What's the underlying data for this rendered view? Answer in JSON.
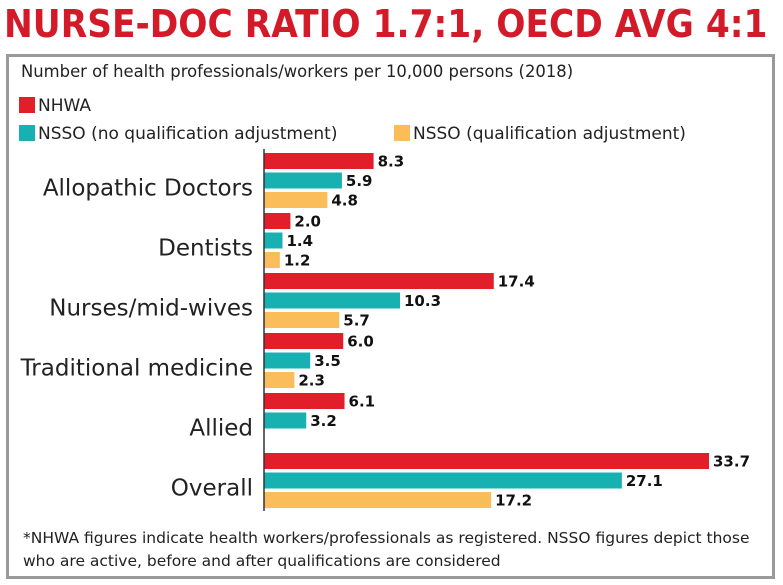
{
  "header": {
    "title": "NURSE-DOC RATIO 1.7:1, OECD AVG 4:1"
  },
  "colors": {
    "title": "#d31a28",
    "nhwa": "#e21e2b",
    "nsso_no_adj": "#16b1b0",
    "nsso_adj": "#fbbd59",
    "panel_border": "#9a9a9a"
  },
  "chart_data": {
    "type": "bar",
    "orientation": "horizontal",
    "title": "Number of health professionals/workers per 10,000 persons (2018)",
    "categories": [
      "Allopathic Doctors",
      "Dentists",
      "Nurses/mid-wives",
      "Traditional medicine",
      "Allied",
      "Overall"
    ],
    "series": [
      {
        "name": "NHWA",
        "color": "#e21e2b",
        "values": [
          8.3,
          2.0,
          17.4,
          6.0,
          6.1,
          33.7
        ]
      },
      {
        "name": "NSSO (no qualification adjustment)",
        "color": "#16b1b0",
        "values": [
          5.9,
          1.4,
          10.3,
          3.5,
          3.2,
          27.1
        ]
      },
      {
        "name": "NSSO (qualification adjustment)",
        "color": "#fbbd59",
        "values": [
          4.8,
          1.2,
          5.7,
          2.3,
          null,
          17.2
        ]
      }
    ],
    "value_labels": [
      [
        "8.3",
        "2.0",
        "17.4",
        "6.0",
        "6.1",
        "33.7"
      ],
      [
        "5.9",
        "1.4",
        "10.3",
        "3.5",
        "3.2",
        "27.1"
      ],
      [
        "4.8",
        "1.2",
        "5.7",
        "2.3",
        "",
        "17.2"
      ]
    ],
    "xlim": [
      0,
      33.7
    ],
    "grid": false,
    "legend_position": "top-left"
  },
  "footnote": "*NHWA figures indicate health workers/professionals as registered. NSSO figures depict those who are active, before and after qualifications are considered"
}
